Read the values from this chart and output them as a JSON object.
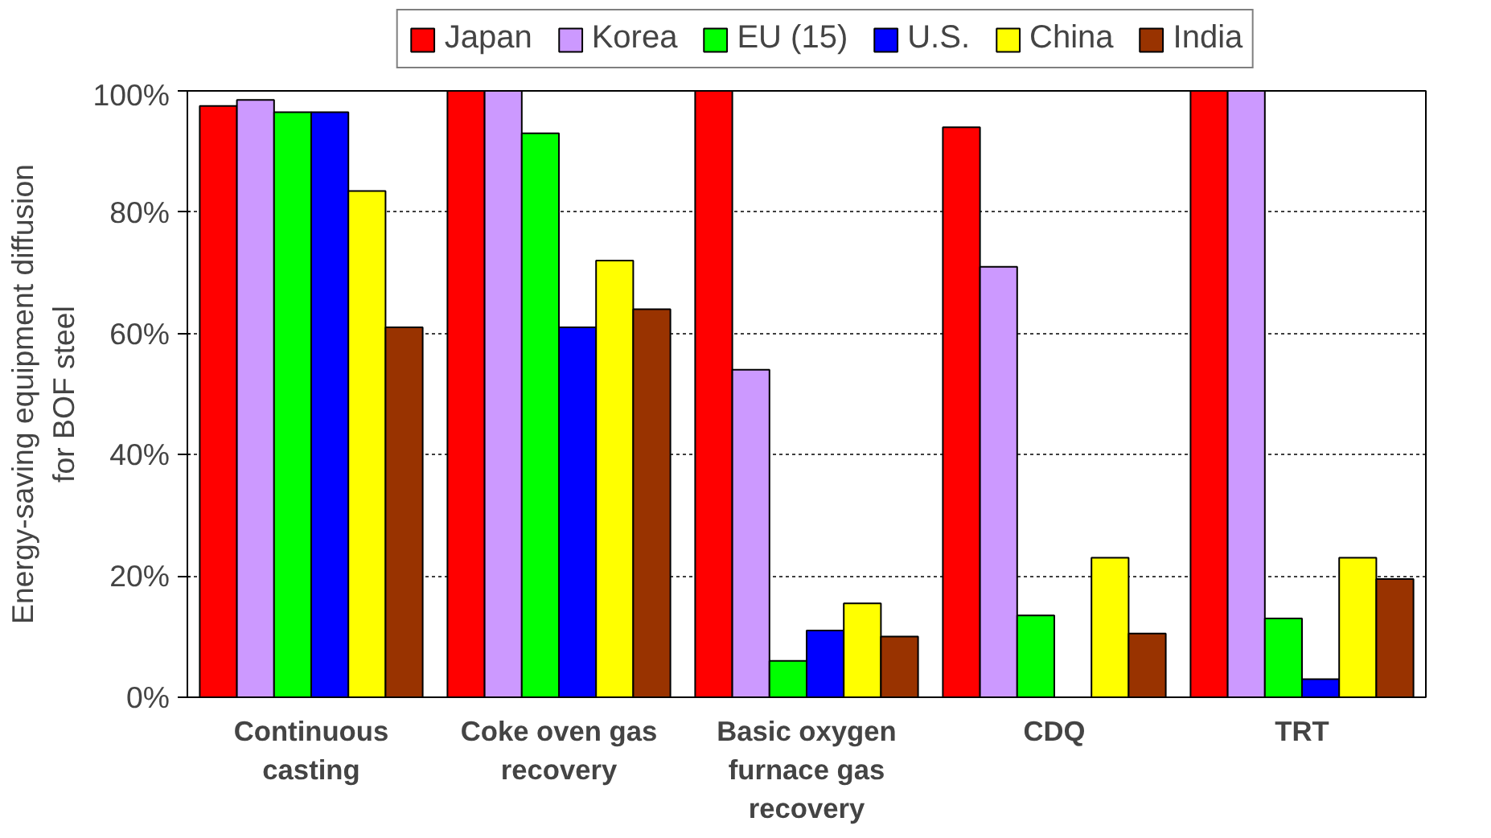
{
  "chart_data": {
    "type": "bar",
    "ylabel": "Energy-saving equipment diffusion for BOF steel",
    "categories": [
      "Continuous casting",
      "Coke oven gas recovery",
      "Basic oxygen furnace gas recovery",
      "CDQ",
      "TRT"
    ],
    "series": [
      {
        "name": "Japan",
        "color": "#ff0000",
        "values": [
          97.5,
          100,
          100,
          94,
          100
        ]
      },
      {
        "name": "Korea",
        "color": "#cc99ff",
        "values": [
          98.5,
          100,
          54,
          71,
          100
        ]
      },
      {
        "name": "EU (15)",
        "color": "#00ff00",
        "values": [
          96.5,
          93,
          6,
          13.5,
          13
        ]
      },
      {
        "name": "U.S.",
        "color": "#0000ff",
        "values": [
          96.5,
          61,
          11,
          null,
          3
        ]
      },
      {
        "name": "China",
        "color": "#ffff00",
        "values": [
          83.5,
          72,
          15.5,
          23,
          23
        ]
      },
      {
        "name": "India",
        "color": "#993300",
        "values": [
          61,
          64,
          10,
          10.5,
          19.5
        ]
      }
    ],
    "ylim": [
      0,
      100
    ],
    "yticks": [
      {
        "value": 0,
        "label": "0%"
      },
      {
        "value": 20,
        "label": "20%"
      },
      {
        "value": 40,
        "label": "40%"
      },
      {
        "value": 60,
        "label": "60%"
      },
      {
        "value": 80,
        "label": "80%"
      },
      {
        "value": 100,
        "label": "100%"
      }
    ],
    "grid": "y",
    "legend": "top"
  }
}
